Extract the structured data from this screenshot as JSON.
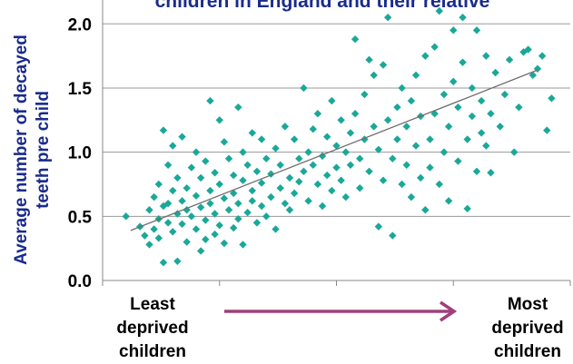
{
  "chart_data": {
    "type": "scatter",
    "title": "children in England and their relative",
    "ylabel_line1": "Average number of decayed",
    "ylabel_line2": "teeth pre child",
    "xlabel_left": [
      "Least",
      "deprived",
      "children"
    ],
    "xlabel_right": [
      "Most",
      "deprived",
      "children"
    ],
    "ylim": [
      0,
      2.2
    ],
    "xlim": [
      0,
      1
    ],
    "yticks": [
      "0.0",
      "0.5",
      "1.0",
      "1.5",
      "2.0"
    ],
    "grid": "horizontal",
    "marker_color": "#1aa898",
    "trendline": {
      "x": [
        0.06,
        0.93
      ],
      "y": [
        0.39,
        1.64
      ]
    },
    "arrow_color": "#a0407a",
    "points": [
      {
        "x": 0.05,
        "y": 0.5
      },
      {
        "x": 0.08,
        "y": 0.42
      },
      {
        "x": 0.09,
        "y": 0.35
      },
      {
        "x": 0.1,
        "y": 0.55
      },
      {
        "x": 0.1,
        "y": 0.28
      },
      {
        "x": 0.11,
        "y": 0.65
      },
      {
        "x": 0.11,
        "y": 0.4
      },
      {
        "x": 0.12,
        "y": 0.75
      },
      {
        "x": 0.12,
        "y": 0.48
      },
      {
        "x": 0.12,
        "y": 0.33
      },
      {
        "x": 0.13,
        "y": 1.17
      },
      {
        "x": 0.13,
        "y": 0.58
      },
      {
        "x": 0.13,
        "y": 0.14
      },
      {
        "x": 0.14,
        "y": 0.9
      },
      {
        "x": 0.14,
        "y": 0.45
      },
      {
        "x": 0.14,
        "y": 0.6
      },
      {
        "x": 0.15,
        "y": 1.05
      },
      {
        "x": 0.15,
        "y": 0.7
      },
      {
        "x": 0.15,
        "y": 0.38
      },
      {
        "x": 0.16,
        "y": 0.52
      },
      {
        "x": 0.16,
        "y": 0.15
      },
      {
        "x": 0.16,
        "y": 0.8
      },
      {
        "x": 0.17,
        "y": 1.12
      },
      {
        "x": 0.17,
        "y": 0.62
      },
      {
        "x": 0.17,
        "y": 0.44
      },
      {
        "x": 0.18,
        "y": 0.72
      },
      {
        "x": 0.18,
        "y": 0.55
      },
      {
        "x": 0.18,
        "y": 0.3
      },
      {
        "x": 0.19,
        "y": 0.88
      },
      {
        "x": 0.19,
        "y": 0.5
      },
      {
        "x": 0.2,
        "y": 1.0
      },
      {
        "x": 0.2,
        "y": 0.66
      },
      {
        "x": 0.2,
        "y": 0.4
      },
      {
        "x": 0.21,
        "y": 0.8
      },
      {
        "x": 0.21,
        "y": 0.57
      },
      {
        "x": 0.21,
        "y": 0.23
      },
      {
        "x": 0.22,
        "y": 0.93
      },
      {
        "x": 0.22,
        "y": 0.47
      },
      {
        "x": 0.22,
        "y": 0.32
      },
      {
        "x": 0.23,
        "y": 1.4
      },
      {
        "x": 0.23,
        "y": 0.7
      },
      {
        "x": 0.23,
        "y": 0.6
      },
      {
        "x": 0.24,
        "y": 0.84
      },
      {
        "x": 0.24,
        "y": 0.52
      },
      {
        "x": 0.24,
        "y": 0.36
      },
      {
        "x": 0.25,
        "y": 1.25
      },
      {
        "x": 0.25,
        "y": 0.75
      },
      {
        "x": 0.25,
        "y": 0.43
      },
      {
        "x": 0.26,
        "y": 1.08
      },
      {
        "x": 0.26,
        "y": 0.64
      },
      {
        "x": 0.26,
        "y": 0.29
      },
      {
        "x": 0.27,
        "y": 0.95
      },
      {
        "x": 0.27,
        "y": 0.55
      },
      {
        "x": 0.28,
        "y": 0.82
      },
      {
        "x": 0.28,
        "y": 0.41
      },
      {
        "x": 0.28,
        "y": 0.68
      },
      {
        "x": 0.29,
        "y": 1.35
      },
      {
        "x": 0.29,
        "y": 0.6
      },
      {
        "x": 0.29,
        "y": 0.48
      },
      {
        "x": 0.3,
        "y": 1.0
      },
      {
        "x": 0.3,
        "y": 0.78
      },
      {
        "x": 0.3,
        "y": 0.28
      },
      {
        "x": 0.31,
        "y": 0.9
      },
      {
        "x": 0.31,
        "y": 0.53
      },
      {
        "x": 0.32,
        "y": 1.15
      },
      {
        "x": 0.32,
        "y": 0.7
      },
      {
        "x": 0.32,
        "y": 0.62
      },
      {
        "x": 0.33,
        "y": 0.85
      },
      {
        "x": 0.33,
        "y": 0.45
      },
      {
        "x": 0.34,
        "y": 1.1
      },
      {
        "x": 0.34,
        "y": 0.76
      },
      {
        "x": 0.34,
        "y": 0.58
      },
      {
        "x": 0.35,
        "y": 0.95
      },
      {
        "x": 0.35,
        "y": 0.5
      },
      {
        "x": 0.36,
        "y": 0.83
      },
      {
        "x": 0.36,
        "y": 0.65
      },
      {
        "x": 0.37,
        "y": 1.03
      },
      {
        "x": 0.37,
        "y": 0.4
      },
      {
        "x": 0.38,
        "y": 0.9
      },
      {
        "x": 0.38,
        "y": 0.72
      },
      {
        "x": 0.39,
        "y": 1.2
      },
      {
        "x": 0.39,
        "y": 0.6
      },
      {
        "x": 0.4,
        "y": 0.8
      },
      {
        "x": 0.4,
        "y": 0.55
      },
      {
        "x": 0.41,
        "y": 1.1
      },
      {
        "x": 0.41,
        "y": 0.68
      },
      {
        "x": 0.42,
        "y": 0.95
      },
      {
        "x": 0.42,
        "y": 0.77
      },
      {
        "x": 0.43,
        "y": 1.5
      },
      {
        "x": 0.43,
        "y": 0.85
      },
      {
        "x": 0.44,
        "y": 1.0
      },
      {
        "x": 0.44,
        "y": 0.62
      },
      {
        "x": 0.45,
        "y": 1.18
      },
      {
        "x": 0.45,
        "y": 0.9
      },
      {
        "x": 0.46,
        "y": 0.75
      },
      {
        "x": 0.46,
        "y": 1.3
      },
      {
        "x": 0.47,
        "y": 0.97
      },
      {
        "x": 0.47,
        "y": 0.58
      },
      {
        "x": 0.48,
        "y": 1.12
      },
      {
        "x": 0.48,
        "y": 0.82
      },
      {
        "x": 0.49,
        "y": 1.4
      },
      {
        "x": 0.49,
        "y": 0.7
      },
      {
        "x": 0.5,
        "y": 1.05
      },
      {
        "x": 0.5,
        "y": 0.88
      },
      {
        "x": 0.51,
        "y": 1.25
      },
      {
        "x": 0.51,
        "y": 0.78
      },
      {
        "x": 0.52,
        "y": 1.0
      },
      {
        "x": 0.52,
        "y": 0.65
      },
      {
        "x": 0.53,
        "y": 1.15
      },
      {
        "x": 0.53,
        "y": 0.9
      },
      {
        "x": 0.54,
        "y": 1.88
      },
      {
        "x": 0.54,
        "y": 1.3
      },
      {
        "x": 0.55,
        "y": 0.95
      },
      {
        "x": 0.55,
        "y": 0.72
      },
      {
        "x": 0.56,
        "y": 1.45
      },
      {
        "x": 0.56,
        "y": 1.1
      },
      {
        "x": 0.57,
        "y": 1.72
      },
      {
        "x": 0.57,
        "y": 0.85
      },
      {
        "x": 0.58,
        "y": 1.6
      },
      {
        "x": 0.58,
        "y": 1.2
      },
      {
        "x": 0.59,
        "y": 0.42
      },
      {
        "x": 0.59,
        "y": 1.02
      },
      {
        "x": 0.6,
        "y": 1.68
      },
      {
        "x": 0.6,
        "y": 0.78
      },
      {
        "x": 0.61,
        "y": 2.05
      },
      {
        "x": 0.61,
        "y": 1.25
      },
      {
        "x": 0.62,
        "y": 0.35
      },
      {
        "x": 0.62,
        "y": 0.95
      },
      {
        "x": 0.63,
        "y": 1.35
      },
      {
        "x": 0.63,
        "y": 1.1
      },
      {
        "x": 0.64,
        "y": 1.5
      },
      {
        "x": 0.64,
        "y": 0.75
      },
      {
        "x": 0.65,
        "y": 1.2
      },
      {
        "x": 0.65,
        "y": 0.9
      },
      {
        "x": 0.66,
        "y": 1.4
      },
      {
        "x": 0.66,
        "y": 0.65
      },
      {
        "x": 0.67,
        "y": 1.05
      },
      {
        "x": 0.67,
        "y": 1.6
      },
      {
        "x": 0.68,
        "y": 0.8
      },
      {
        "x": 0.68,
        "y": 1.28
      },
      {
        "x": 0.69,
        "y": 0.55
      },
      {
        "x": 0.69,
        "y": 1.75
      },
      {
        "x": 0.7,
        "y": 1.1
      },
      {
        "x": 0.7,
        "y": 0.88
      },
      {
        "x": 0.71,
        "y": 1.82
      },
      {
        "x": 0.71,
        "y": 1.3
      },
      {
        "x": 0.72,
        "y": 2.1
      },
      {
        "x": 0.72,
        "y": 0.75
      },
      {
        "x": 0.73,
        "y": 1.45
      },
      {
        "x": 0.73,
        "y": 1.0
      },
      {
        "x": 0.74,
        "y": 1.2
      },
      {
        "x": 0.74,
        "y": 0.62
      },
      {
        "x": 0.75,
        "y": 1.55
      },
      {
        "x": 0.75,
        "y": 1.95
      },
      {
        "x": 0.76,
        "y": 1.35
      },
      {
        "x": 0.76,
        "y": 0.93
      },
      {
        "x": 0.77,
        "y": 1.7
      },
      {
        "x": 0.77,
        "y": 2.05
      },
      {
        "x": 0.78,
        "y": 1.1
      },
      {
        "x": 0.78,
        "y": 0.56
      },
      {
        "x": 0.79,
        "y": 1.5
      },
      {
        "x": 0.79,
        "y": 1.28
      },
      {
        "x": 0.8,
        "y": 1.95
      },
      {
        "x": 0.8,
        "y": 0.85
      },
      {
        "x": 0.81,
        "y": 1.4
      },
      {
        "x": 0.81,
        "y": 1.15
      },
      {
        "x": 0.82,
        "y": 1.75
      },
      {
        "x": 0.82,
        "y": 1.05
      },
      {
        "x": 0.83,
        "y": 1.3
      },
      {
        "x": 0.83,
        "y": 0.84
      },
      {
        "x": 0.84,
        "y": 1.62
      },
      {
        "x": 0.85,
        "y": 1.2
      },
      {
        "x": 0.86,
        "y": 1.45
      },
      {
        "x": 0.87,
        "y": 1.72
      },
      {
        "x": 0.88,
        "y": 1.0
      },
      {
        "x": 0.89,
        "y": 1.35
      },
      {
        "x": 0.9,
        "y": 1.78
      },
      {
        "x": 0.91,
        "y": 1.8
      },
      {
        "x": 0.92,
        "y": 1.6
      },
      {
        "x": 0.93,
        "y": 1.65
      },
      {
        "x": 0.94,
        "y": 1.75
      },
      {
        "x": 0.95,
        "y": 1.17
      },
      {
        "x": 0.96,
        "y": 1.42
      }
    ]
  }
}
